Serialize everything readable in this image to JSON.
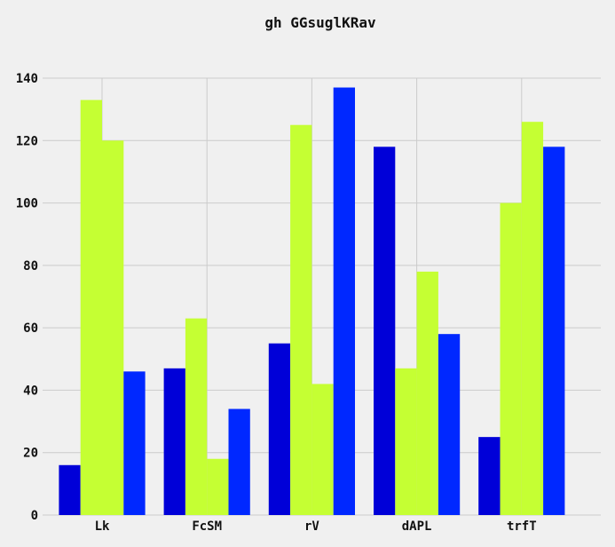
{
  "chart_data": {
    "type": "bar",
    "title": "gh GGsuglKRav",
    "xlabel": "",
    "ylabel": "",
    "categories": [
      "Lk",
      "FcSM",
      "rV",
      "dAPL",
      "trfT"
    ],
    "ylim": [
      0,
      140
    ],
    "yticks": [
      0,
      20,
      40,
      60,
      80,
      100,
      120,
      140
    ],
    "grid": true,
    "legend": "none",
    "series": [
      {
        "color": "#0000d8",
        "values": [
          16,
          47,
          55,
          118,
          25
        ]
      },
      {
        "color": "#c5ff33",
        "values": [
          133,
          63,
          125,
          47,
          100
        ]
      },
      {
        "color": "#c5ff33",
        "values": [
          120,
          18,
          42,
          78,
          126
        ]
      },
      {
        "color": "#0028ff",
        "values": [
          46,
          34,
          137,
          58,
          118
        ]
      }
    ]
  }
}
